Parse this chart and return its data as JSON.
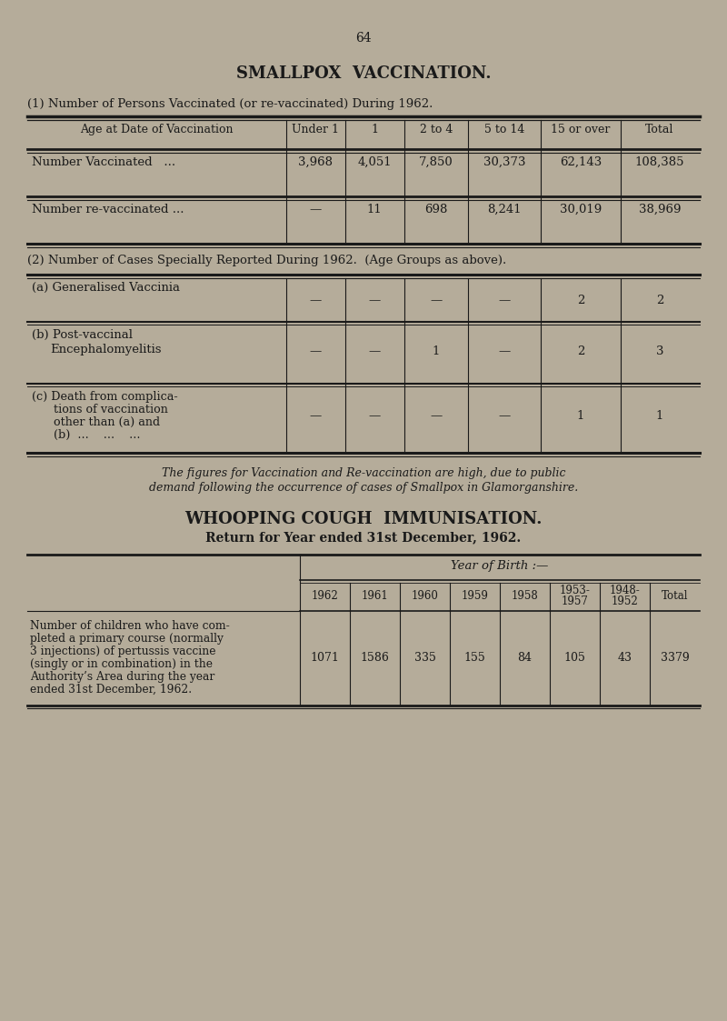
{
  "bg_color": "#b5ac9a",
  "text_color": "#1a1a1a",
  "page_number": "64",
  "title1": "SMALLPOX  VACCINATION.",
  "subtitle1": "(1) Number of Persons Vaccinated (or re-vaccinated) During 1962.",
  "table2_subtitle": "(2) Number of Cases Specially Reported During 1962.  (Age Groups as above).",
  "footnote_line1": "The figures for Vaccination and Re-vaccination are high, due to public",
  "footnote_line2": "demand following the occurrence of cases of Smallpox in Glamorganshire.",
  "title2": "WHOOPING COUGH  IMMUNISATION.",
  "subtitle3": "Return for Year ended 31st December, 1962.",
  "yob_header": "Year of Birth :—",
  "table3_row_label_lines": [
    "Number of children who have com-",
    "pleted a primary course (normally",
    "3 injections) of pertussis vaccine",
    "(singly or in combination) in the",
    "Authority’s Area during the year",
    "ended 31st December, 1962."
  ],
  "table3_values": [
    "1071",
    "1586",
    "335",
    "155",
    "84",
    "105",
    "43",
    "3379"
  ]
}
